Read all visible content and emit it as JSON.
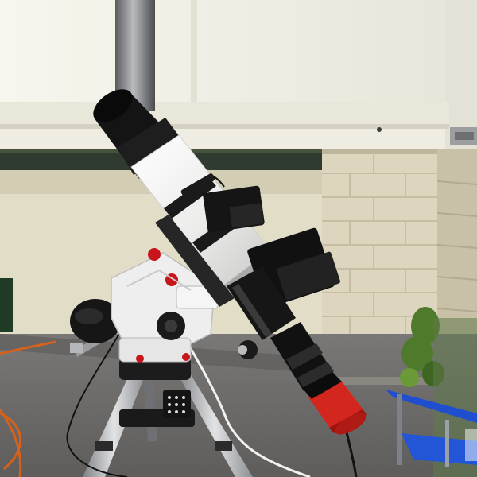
{
  "image": {
    "subject": "refractor-telescope-on-equatorial-mount",
    "colors": {
      "sky_wall": "#f1efe4",
      "trim": "#ece9dd",
      "brick": "#ddd6bf",
      "brick_shadow": "#c9c2aa",
      "siding": "#2f3a2f",
      "asphalt": "#6f6d6b",
      "tube_white": "#f4f4f2",
      "dew_shield": "#121212",
      "mount_white": "#eeeeee",
      "knob_red": "#c8141b",
      "camera_red": "#d3261e",
      "tripod_silver": "#bfc0c2",
      "chair_blue": "#1f4fcf",
      "cable_orange": "#d4621c",
      "foliage": "#4f7a2c"
    }
  }
}
